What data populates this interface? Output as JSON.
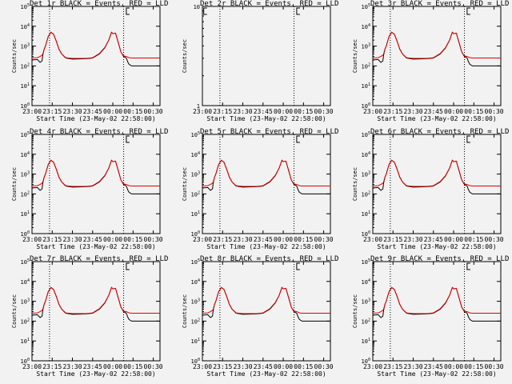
{
  "figure": {
    "background": "#f2f2f2",
    "axis_color": "#000000"
  },
  "time_ticks": [
    "23:00",
    "23:15",
    "23:30",
    "23:45",
    "00:00",
    "00:15",
    "00:30"
  ],
  "chart_data": [
    {
      "type": "line",
      "title": "Det 1r BLACK = Events, RED = LLD",
      "xlabel": "Start Time (23-May-02 22:58:00)",
      "ylabel": "Counts/sec",
      "yscale": "log",
      "ylim": [
        1,
        100000
      ],
      "ytick_exponents": [
        0,
        1,
        2,
        3,
        4,
        5
      ],
      "x_minutes_from_23_00": [
        0,
        4,
        6,
        7.5,
        8,
        9,
        10,
        12,
        14,
        16,
        18,
        20,
        22,
        25,
        30,
        40,
        45,
        50,
        54,
        57,
        59,
        60,
        62,
        64,
        66,
        68,
        70,
        71,
        72,
        74,
        80,
        95
      ],
      "series": [
        {
          "name": "Events",
          "color": "#000000",
          "values": [
            200,
            210,
            150,
            180,
            350,
            700,
            1000,
            3000,
            5000,
            4000,
            1800,
            700,
            400,
            250,
            220,
            230,
            250,
            400,
            800,
            2000,
            5000,
            4200,
            4500,
            1500,
            500,
            300,
            250,
            160,
            120,
            100,
            100,
            100
          ]
        },
        {
          "name": "LLD",
          "color": "#e00000",
          "values": [
            250,
            260,
            300,
            350,
            400,
            700,
            1000,
            3000,
            5000,
            4000,
            1800,
            700,
            400,
            260,
            240,
            240,
            260,
            420,
            850,
            2000,
            5000,
            4200,
            4500,
            1500,
            500,
            320,
            300,
            280,
            260,
            250,
            250,
            250
          ]
        }
      ],
      "dotted_vlines_minutes": [
        13,
        68
      ],
      "marker_minutes": 70
    },
    {
      "type": "line",
      "title": "Det 2r BLACK = Events, RED = LLD",
      "xlabel": "Start Time (23-May-02 22:58:00)",
      "ylabel": "Counts/sec",
      "yscale": "log",
      "ylim": [
        1,
        10
      ],
      "ytick_exponents": [
        0,
        1
      ],
      "x_minutes_from_23_00": [],
      "series": [],
      "dotted_vlines_minutes": [
        13,
        68
      ],
      "marker_minutes": 70,
      "left_marker_minutes": 1
    },
    {
      "type": "line",
      "title": "Det 3r BLACK = Events, RED = LLD",
      "xlabel": "Start Time (23-May-02 22:58:00)",
      "ylabel": "Counts/sec",
      "yscale": "log",
      "ylim": [
        1,
        100000
      ],
      "ytick_exponents": [
        0,
        1,
        2,
        3,
        4,
        5
      ],
      "x_minutes_from_23_00": [
        0,
        4,
        6,
        7.5,
        8,
        9,
        10,
        12,
        14,
        16,
        18,
        20,
        22,
        25,
        30,
        40,
        45,
        50,
        54,
        57,
        59,
        60,
        62,
        64,
        66,
        68,
        70,
        71,
        72,
        74,
        80,
        95
      ],
      "series": [
        {
          "name": "Events",
          "color": "#000000",
          "values": [
            200,
            210,
            150,
            180,
            350,
            700,
            1000,
            3000,
            5000,
            4000,
            1800,
            700,
            400,
            250,
            220,
            230,
            250,
            400,
            800,
            2000,
            5000,
            4200,
            4500,
            1500,
            500,
            300,
            250,
            160,
            120,
            100,
            100,
            100
          ]
        },
        {
          "name": "LLD",
          "color": "#e00000",
          "values": [
            250,
            260,
            300,
            350,
            400,
            700,
            1000,
            3000,
            5000,
            4000,
            1800,
            700,
            400,
            260,
            240,
            240,
            260,
            420,
            850,
            2000,
            5000,
            4200,
            4500,
            1500,
            500,
            320,
            300,
            280,
            260,
            250,
            250,
            250
          ]
        }
      ],
      "dotted_vlines_minutes": [
        13,
        68
      ],
      "marker_minutes": 70
    },
    {
      "type": "line",
      "title": "Det 4r BLACK = Events, RED = LLD",
      "xlabel": "Start Time (23-May-02 22:58:00)",
      "ylabel": "Counts/sec",
      "yscale": "log",
      "ylim": [
        1,
        100000
      ],
      "ytick_exponents": [
        0,
        1,
        2,
        3,
        4,
        5
      ],
      "x_minutes_from_23_00": [
        0,
        4,
        6,
        7.5,
        8,
        9,
        10,
        12,
        14,
        16,
        18,
        20,
        22,
        25,
        30,
        40,
        45,
        50,
        54,
        57,
        59,
        60,
        62,
        64,
        66,
        68,
        70,
        71,
        72,
        74,
        80,
        95
      ],
      "series": [
        {
          "name": "Events",
          "color": "#000000",
          "values": [
            200,
            210,
            150,
            180,
            350,
            700,
            1000,
            3000,
            5000,
            4000,
            1800,
            700,
            400,
            250,
            220,
            230,
            250,
            400,
            800,
            2000,
            5000,
            4200,
            4500,
            1500,
            500,
            300,
            250,
            160,
            120,
            100,
            100,
            100
          ]
        },
        {
          "name": "LLD",
          "color": "#e00000",
          "values": [
            250,
            260,
            300,
            350,
            400,
            700,
            1000,
            3000,
            5000,
            4000,
            1800,
            700,
            400,
            260,
            240,
            240,
            260,
            420,
            850,
            2000,
            5000,
            4200,
            4500,
            1500,
            500,
            320,
            300,
            280,
            260,
            250,
            250,
            250
          ]
        }
      ],
      "dotted_vlines_minutes": [
        13,
        68
      ],
      "marker_minutes": 70
    },
    {
      "type": "line",
      "title": "Det 5r BLACK = Events, RED = LLD",
      "xlabel": "Start Time (23-May-02 22:58:00)",
      "ylabel": "Counts/sec",
      "yscale": "log",
      "ylim": [
        1,
        100000
      ],
      "ytick_exponents": [
        0,
        1,
        2,
        3,
        4,
        5
      ],
      "x_minutes_from_23_00": [
        0,
        4,
        6,
        7.5,
        8,
        9,
        10,
        12,
        14,
        16,
        18,
        20,
        22,
        25,
        30,
        40,
        45,
        50,
        54,
        57,
        59,
        60,
        62,
        64,
        66,
        68,
        70,
        71,
        72,
        74,
        80,
        95
      ],
      "series": [
        {
          "name": "Events",
          "color": "#000000",
          "values": [
            200,
            210,
            150,
            180,
            350,
            700,
            1000,
            3000,
            5000,
            4000,
            1800,
            700,
            400,
            250,
            220,
            230,
            250,
            400,
            800,
            2000,
            5000,
            4200,
            4500,
            1500,
            500,
            300,
            250,
            160,
            120,
            100,
            100,
            100
          ]
        },
        {
          "name": "LLD",
          "color": "#e00000",
          "values": [
            250,
            260,
            300,
            350,
            400,
            700,
            1000,
            3000,
            5000,
            4000,
            1800,
            700,
            400,
            260,
            240,
            240,
            260,
            420,
            850,
            2000,
            5000,
            4200,
            4500,
            1500,
            500,
            320,
            300,
            280,
            260,
            250,
            250,
            250
          ]
        }
      ],
      "dotted_vlines_minutes": [
        13,
        68
      ],
      "marker_minutes": 70
    },
    {
      "type": "line",
      "title": "Det 6r BLACK = Events, RED = LLD",
      "xlabel": "Start Time (23-May-02 22:58:00)",
      "ylabel": "Counts/sec",
      "yscale": "log",
      "ylim": [
        1,
        100000
      ],
      "ytick_exponents": [
        0,
        1,
        2,
        3,
        4,
        5
      ],
      "x_minutes_from_23_00": [
        0,
        4,
        6,
        7.5,
        8,
        9,
        10,
        12,
        14,
        16,
        18,
        20,
        22,
        25,
        30,
        40,
        45,
        50,
        54,
        57,
        59,
        60,
        62,
        64,
        66,
        68,
        70,
        71,
        72,
        74,
        80,
        95
      ],
      "series": [
        {
          "name": "Events",
          "color": "#000000",
          "values": [
            200,
            210,
            150,
            180,
            350,
            700,
            1000,
            3000,
            5000,
            4000,
            1800,
            700,
            400,
            250,
            220,
            230,
            250,
            400,
            800,
            2000,
            5000,
            4200,
            4500,
            1500,
            500,
            300,
            250,
            160,
            120,
            100,
            100,
            100
          ]
        },
        {
          "name": "LLD",
          "color": "#e00000",
          "values": [
            250,
            260,
            300,
            350,
            400,
            700,
            1000,
            3000,
            5000,
            4000,
            1800,
            700,
            400,
            260,
            240,
            240,
            260,
            420,
            850,
            2000,
            5000,
            4200,
            4500,
            1500,
            500,
            320,
            300,
            280,
            260,
            250,
            250,
            250
          ]
        }
      ],
      "dotted_vlines_minutes": [
        13,
        68
      ],
      "marker_minutes": 70
    },
    {
      "type": "line",
      "title": "Det 7r BLACK = Events, RED = LLD",
      "xlabel": "Start Time (23-May-02 22:58:00)",
      "ylabel": "Counts/sec",
      "yscale": "log",
      "ylim": [
        1,
        100000
      ],
      "ytick_exponents": [
        0,
        1,
        2,
        3,
        4,
        5
      ],
      "x_minutes_from_23_00": [
        0,
        4,
        6,
        7.5,
        8,
        9,
        10,
        12,
        14,
        16,
        18,
        20,
        22,
        25,
        30,
        40,
        45,
        50,
        54,
        57,
        59,
        60,
        62,
        64,
        66,
        68,
        70,
        71,
        72,
        74,
        80,
        95
      ],
      "series": [
        {
          "name": "Events",
          "color": "#000000",
          "values": [
            200,
            210,
            150,
            180,
            350,
            700,
            1000,
            3000,
            5000,
            4000,
            1800,
            700,
            400,
            250,
            220,
            230,
            250,
            400,
            800,
            2000,
            5000,
            4200,
            4500,
            1500,
            500,
            300,
            250,
            160,
            120,
            100,
            100,
            100
          ]
        },
        {
          "name": "LLD",
          "color": "#e00000",
          "values": [
            250,
            260,
            300,
            350,
            400,
            700,
            1000,
            3000,
            5000,
            4000,
            1800,
            700,
            400,
            260,
            240,
            240,
            260,
            420,
            850,
            2000,
            5000,
            4200,
            4500,
            1500,
            500,
            320,
            300,
            280,
            260,
            250,
            250,
            250
          ]
        }
      ],
      "dotted_vlines_minutes": [
        13,
        68
      ],
      "marker_minutes": 70
    },
    {
      "type": "line",
      "title": "Det 8r BLACK = Events, RED = LLD",
      "xlabel": "Start Time (23-May-02 22:58:00)",
      "ylabel": "Counts/sec",
      "yscale": "log",
      "ylim": [
        1,
        100000
      ],
      "ytick_exponents": [
        0,
        1,
        2,
        3,
        4,
        5
      ],
      "x_minutes_from_23_00": [
        0,
        4,
        6,
        7.5,
        8,
        9,
        10,
        12,
        14,
        16,
        18,
        20,
        22,
        25,
        30,
        40,
        45,
        50,
        54,
        57,
        59,
        60,
        62,
        64,
        66,
        68,
        70,
        71,
        72,
        74,
        80,
        95
      ],
      "series": [
        {
          "name": "Events",
          "color": "#000000",
          "values": [
            200,
            210,
            150,
            180,
            350,
            700,
            1000,
            3000,
            5000,
            4000,
            1800,
            700,
            400,
            250,
            220,
            230,
            250,
            400,
            800,
            2000,
            5000,
            4200,
            4500,
            1500,
            500,
            300,
            250,
            160,
            120,
            100,
            100,
            100
          ]
        },
        {
          "name": "LLD",
          "color": "#e00000",
          "values": [
            250,
            260,
            300,
            350,
            400,
            700,
            1000,
            3000,
            5000,
            4000,
            1800,
            700,
            400,
            260,
            240,
            240,
            260,
            420,
            850,
            2000,
            5000,
            4200,
            4500,
            1500,
            500,
            320,
            300,
            280,
            260,
            250,
            250,
            250
          ]
        }
      ],
      "dotted_vlines_minutes": [
        13,
        68
      ],
      "marker_minutes": 70
    },
    {
      "type": "line",
      "title": "Det 9r BLACK = Events, RED = LLD",
      "xlabel": "Start Time (23-May-02 22:58:00)",
      "ylabel": "Counts/sec",
      "yscale": "log",
      "ylim": [
        1,
        100000
      ],
      "ytick_exponents": [
        0,
        1,
        2,
        3,
        4,
        5
      ],
      "x_minutes_from_23_00": [
        0,
        4,
        6,
        7.5,
        8,
        9,
        10,
        12,
        14,
        16,
        18,
        20,
        22,
        25,
        30,
        40,
        45,
        50,
        54,
        57,
        59,
        60,
        62,
        64,
        66,
        68,
        70,
        71,
        72,
        74,
        80,
        95
      ],
      "series": [
        {
          "name": "Events",
          "color": "#000000",
          "values": [
            200,
            210,
            150,
            180,
            350,
            700,
            1000,
            3000,
            5000,
            4000,
            1800,
            700,
            400,
            250,
            220,
            230,
            250,
            400,
            800,
            2000,
            5000,
            4200,
            4500,
            1500,
            500,
            300,
            250,
            160,
            120,
            100,
            100,
            100
          ]
        },
        {
          "name": "LLD",
          "color": "#e00000",
          "values": [
            250,
            260,
            300,
            350,
            400,
            700,
            1000,
            3000,
            5000,
            4000,
            1800,
            700,
            400,
            260,
            240,
            240,
            260,
            420,
            850,
            2000,
            5000,
            4200,
            4500,
            1500,
            500,
            320,
            300,
            280,
            260,
            250,
            250,
            250
          ]
        }
      ],
      "dotted_vlines_minutes": [
        13,
        68
      ],
      "marker_minutes": 70
    }
  ]
}
